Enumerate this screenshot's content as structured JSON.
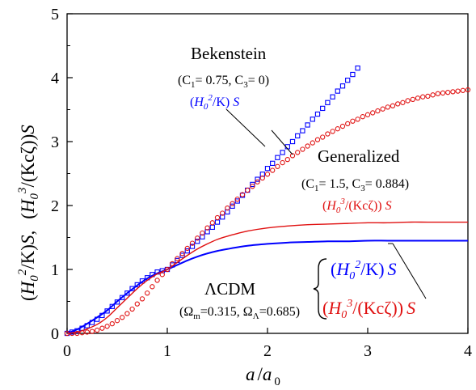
{
  "chart_data": {
    "type": "line",
    "xlabel": "a / a 0",
    "ylabel": "(H₀²/K)S,   (H₀³/(Kcζ))S",
    "xlim": [
      0,
      4
    ],
    "ylim": [
      0,
      5
    ],
    "xticks": [
      "0",
      "1",
      "2",
      "3",
      "4"
    ],
    "yticks": [
      "0",
      "1",
      "2",
      "3",
      "4",
      "5"
    ],
    "grid": false,
    "series": [
      {
        "group": "Bekenstein",
        "quantity": "(H0^2/K)S",
        "style": "open-squares",
        "color": "#0000ff",
        "x": [
          0.0,
          0.05,
          0.1,
          0.15,
          0.2,
          0.25,
          0.3,
          0.35,
          0.4,
          0.45,
          0.5,
          0.55,
          0.6,
          0.65,
          0.7,
          0.75,
          0.8,
          0.85,
          0.9,
          0.95,
          1.0,
          1.05,
          1.1,
          1.15,
          1.2,
          1.25,
          1.3,
          1.35,
          1.4,
          1.45,
          1.5,
          1.55,
          1.6,
          1.65,
          1.7,
          1.75,
          1.8,
          1.85,
          1.9,
          1.95,
          2.0,
          2.05,
          2.1,
          2.15,
          2.2,
          2.25,
          2.3,
          2.35,
          2.4,
          2.45,
          2.5,
          2.55,
          2.6,
          2.65,
          2.7,
          2.75,
          2.8,
          2.85,
          2.9
        ],
        "y": [
          0.0,
          0.02,
          0.04,
          0.08,
          0.12,
          0.17,
          0.22,
          0.28,
          0.35,
          0.42,
          0.49,
          0.56,
          0.63,
          0.7,
          0.76,
          0.82,
          0.87,
          0.92,
          0.96,
          0.98,
          1.0,
          1.07,
          1.14,
          1.22,
          1.29,
          1.36,
          1.44,
          1.51,
          1.59,
          1.66,
          1.74,
          1.82,
          1.9,
          1.99,
          2.07,
          2.16,
          2.24,
          2.33,
          2.41,
          2.49,
          2.58,
          2.66,
          2.75,
          2.83,
          2.92,
          3.0,
          3.09,
          3.17,
          3.26,
          3.35,
          3.43,
          3.52,
          3.61,
          3.7,
          3.79,
          3.87,
          3.96,
          4.05,
          4.15
        ]
      },
      {
        "group": "Generalized",
        "quantity": "(H0^3/(Kcζ))S",
        "style": "open-circles",
        "color": "#e01010",
        "x": [
          0.0,
          0.05,
          0.1,
          0.15,
          0.2,
          0.25,
          0.3,
          0.35,
          0.4,
          0.45,
          0.5,
          0.55,
          0.6,
          0.65,
          0.7,
          0.75,
          0.8,
          0.85,
          0.9,
          0.95,
          1.0,
          1.05,
          1.1,
          1.15,
          1.2,
          1.25,
          1.3,
          1.35,
          1.4,
          1.45,
          1.5,
          1.55,
          1.6,
          1.65,
          1.7,
          1.75,
          1.8,
          1.85,
          1.9,
          1.95,
          2.0,
          2.05,
          2.1,
          2.15,
          2.2,
          2.25,
          2.3,
          2.35,
          2.4,
          2.45,
          2.5,
          2.55,
          2.6,
          2.65,
          2.7,
          2.75,
          2.8,
          2.85,
          2.9,
          2.95,
          3.0,
          3.05,
          3.1,
          3.15,
          3.2,
          3.25,
          3.3,
          3.35,
          3.4,
          3.45,
          3.5,
          3.55,
          3.6,
          3.65,
          3.7,
          3.75,
          3.8,
          3.85,
          3.9,
          3.95,
          4.0
        ],
        "y": [
          0.0,
          0.0,
          0.0,
          0.01,
          0.02,
          0.03,
          0.05,
          0.08,
          0.11,
          0.15,
          0.2,
          0.25,
          0.31,
          0.38,
          0.46,
          0.54,
          0.63,
          0.73,
          0.83,
          0.92,
          1.0,
          1.09,
          1.17,
          1.25,
          1.33,
          1.41,
          1.49,
          1.57,
          1.65,
          1.73,
          1.81,
          1.88,
          1.96,
          2.03,
          2.1,
          2.17,
          2.24,
          2.3,
          2.37,
          2.43,
          2.49,
          2.55,
          2.61,
          2.67,
          2.72,
          2.78,
          2.83,
          2.88,
          2.93,
          2.98,
          3.03,
          3.07,
          3.12,
          3.16,
          3.2,
          3.24,
          3.28,
          3.32,
          3.35,
          3.39,
          3.42,
          3.45,
          3.48,
          3.51,
          3.54,
          3.56,
          3.59,
          3.61,
          3.64,
          3.66,
          3.68,
          3.7,
          3.71,
          3.73,
          3.75,
          3.76,
          3.77,
          3.78,
          3.79,
          3.8,
          3.81
        ]
      },
      {
        "group": "ΛCDM",
        "quantity": "(H0^2/K)S",
        "style": "line",
        "color": "#0000ff",
        "x": [
          0.0,
          0.1,
          0.2,
          0.3,
          0.4,
          0.5,
          0.6,
          0.7,
          0.8,
          0.9,
          1.0,
          1.1,
          1.2,
          1.3,
          1.4,
          1.5,
          1.6,
          1.8,
          2.0,
          2.2,
          2.4,
          2.6,
          2.8,
          3.0,
          3.2,
          3.4,
          3.6,
          3.8,
          4.0
        ],
        "y": [
          0.0,
          0.06,
          0.15,
          0.25,
          0.36,
          0.5,
          0.63,
          0.75,
          0.86,
          0.94,
          1.0,
          1.07,
          1.14,
          1.2,
          1.25,
          1.29,
          1.32,
          1.37,
          1.4,
          1.42,
          1.43,
          1.44,
          1.44,
          1.45,
          1.45,
          1.45,
          1.45,
          1.45,
          1.45
        ]
      },
      {
        "group": "ΛCDM",
        "quantity": "(H0^3/(Kcζ))S",
        "style": "line",
        "color": "#e01010",
        "x": [
          0.0,
          0.1,
          0.2,
          0.3,
          0.4,
          0.5,
          0.6,
          0.7,
          0.8,
          0.9,
          1.0,
          1.1,
          1.2,
          1.3,
          1.4,
          1.5,
          1.6,
          1.8,
          2.0,
          2.2,
          2.4,
          2.6,
          2.8,
          3.0,
          3.2,
          3.4,
          3.6,
          3.8,
          4.0
        ],
        "y": [
          0.0,
          0.02,
          0.07,
          0.14,
          0.25,
          0.4,
          0.55,
          0.7,
          0.83,
          0.93,
          1.0,
          1.11,
          1.22,
          1.32,
          1.4,
          1.47,
          1.52,
          1.6,
          1.65,
          1.68,
          1.7,
          1.71,
          1.72,
          1.73,
          1.73,
          1.74,
          1.74,
          1.74,
          1.74
        ]
      }
    ],
    "annotations": {
      "bekenstein_title": "Bekenstein",
      "bekenstein_params": "(C1= 0.75, C3= 0)",
      "bekenstein_label": "(H02/K) S",
      "generalized_title": "Generalized",
      "generalized_params": "(C1= 1.5, C3= 0.884)",
      "generalized_label": "(H03/(Kcζ)) S",
      "lcdm_title": "ΛCDM",
      "lcdm_params": "(Ωm=0.315, ΩΛ=0.685)",
      "lcdm_label_blue": "(H02/K) S",
      "lcdm_label_red": "(H03/(Kcζ)) S"
    }
  },
  "colors": {
    "blue": "#0000ff",
    "red": "#e01010",
    "axis": "#000000"
  },
  "text": {
    "bek_title": "Bekenstein",
    "bek_params_a": "(C",
    "bek_params_sub1": "1",
    "bek_params_b": "= 0.75, C",
    "bek_params_sub3": "3",
    "bek_params_c": "= 0)",
    "gen_title": "Generalized",
    "gen_params_a": "(C",
    "gen_params_sub1": "1",
    "gen_params_b": "= 1.5, C",
    "gen_params_sub3": "3",
    "gen_params_c": "= 0.884)",
    "lcdm_title": "ΛCDM",
    "lcdm_params_a": "(Ω",
    "lcdm_params_subm": "m",
    "lcdm_params_b": "=0.315, Ω",
    "lcdm_params_subL": "Λ",
    "lcdm_params_c": "=0.685)",
    "h": "H",
    "zero": "0",
    "two": "2",
    "three": "3",
    "k_part": "/K)",
    "kcz_part": "/(Kcζ))",
    "s": "S",
    "open_paren": "(",
    "close_paren": ")",
    "comma_gap": ",",
    "x_a": "a",
    "x_slash": "/",
    "x_a0_a": "a",
    "x_a0_sub": "0"
  }
}
